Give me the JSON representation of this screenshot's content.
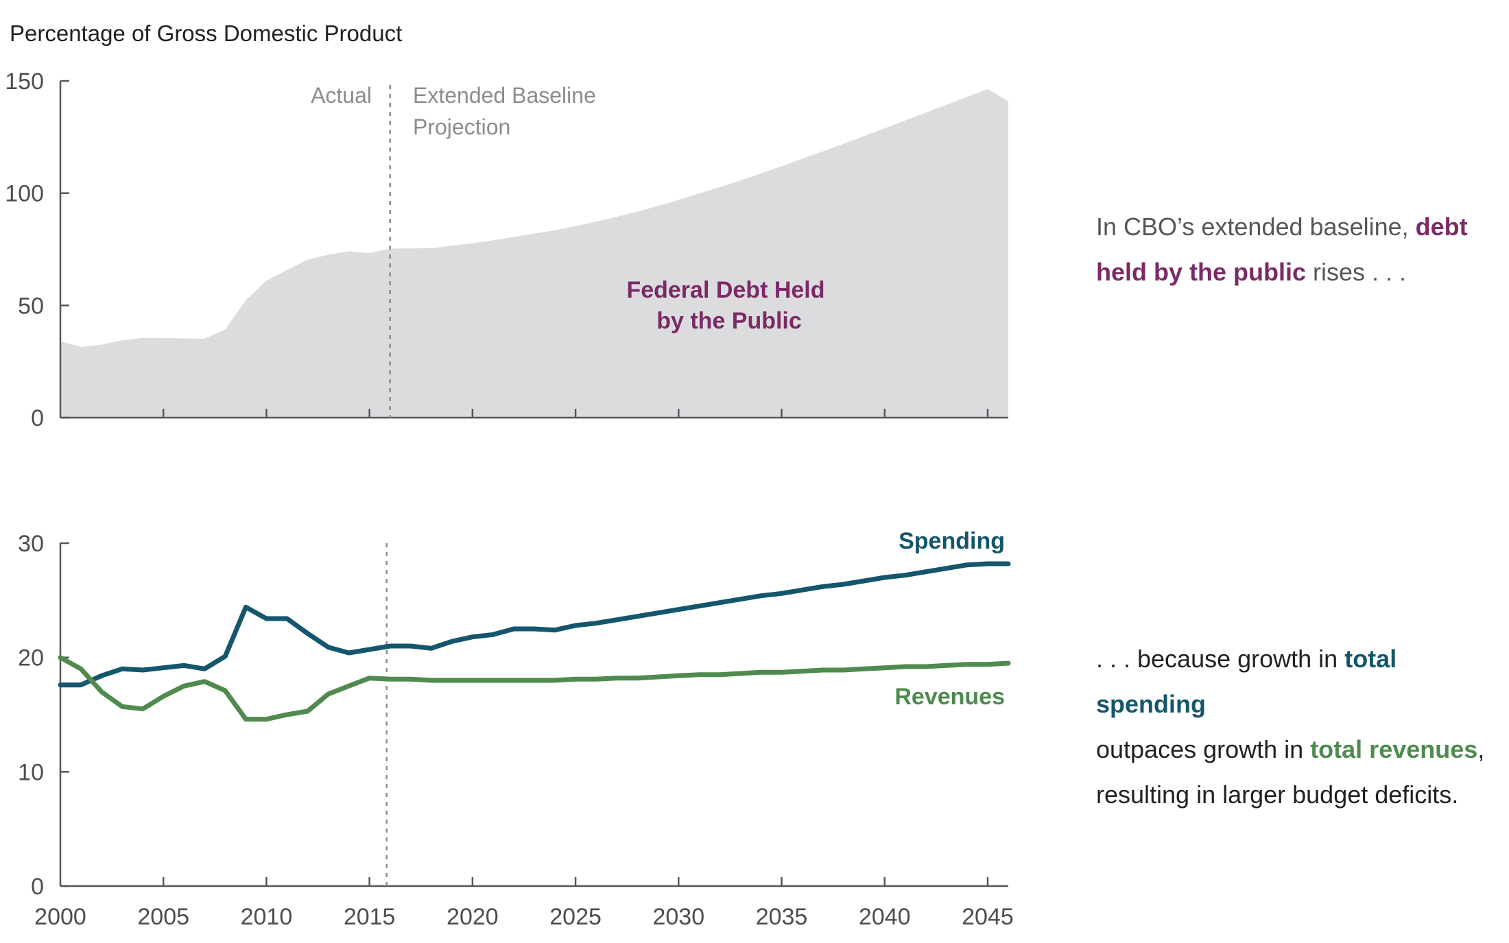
{
  "y_axis_title": "Percentage of Gross Domestic Product",
  "labels": {
    "actual": "Actual",
    "projection_line1": "Extended Baseline",
    "projection_line2": "Projection"
  },
  "colors": {
    "debt_fill": "#dcdcdf",
    "debt_label": "#7b2a66",
    "spending": "#14566b",
    "revenues": "#4f8a4f",
    "axis": "#55565a",
    "divider": "#8c8c8e"
  },
  "annotations": {
    "top": {
      "t1": "In CBO’s extended baseline, ",
      "b1": "debt",
      "b2": "held by the public",
      "t2": " rises . . ."
    },
    "bottom": {
      "t1": ". . . because growth in ",
      "b1": "total spending",
      "t2": "outpaces growth in ",
      "b2": "total revenues",
      "t3": ",",
      "t4": "resulting in larger budget deficits."
    }
  },
  "chart_data": [
    {
      "type": "area",
      "ylim": [
        0,
        150
      ],
      "yticks": [
        "0",
        "50",
        "100",
        "150"
      ],
      "xlim": [
        2000,
        2046
      ],
      "divider_x": 2016,
      "series": [
        {
          "name_line1": "Federal Debt Held",
          "name_line2": "by the Public",
          "x": [
            2000,
            2001,
            2002,
            2003,
            2004,
            2005,
            2006,
            2007,
            2008,
            2009,
            2010,
            2011,
            2012,
            2013,
            2014,
            2015,
            2016,
            2017,
            2018,
            2019,
            2020,
            2021,
            2022,
            2023,
            2024,
            2025,
            2026,
            2027,
            2028,
            2029,
            2030,
            2031,
            2032,
            2033,
            2034,
            2035,
            2036,
            2037,
            2038,
            2039,
            2040,
            2041,
            2042,
            2043,
            2044,
            2045,
            2046
          ],
          "values": [
            34,
            31.5,
            32.5,
            34.5,
            35.5,
            35.5,
            35.3,
            35.2,
            39.3,
            52.3,
            61,
            65.8,
            70.4,
            72.6,
            74.1,
            73.3,
            75.3,
            75.4,
            75.5,
            76.6,
            77.7,
            79,
            80.5,
            82,
            83.5,
            85.3,
            87.3,
            89.5,
            91.8,
            94.3,
            97,
            99.8,
            102.7,
            105.7,
            108.8,
            112,
            115.3,
            118.6,
            122,
            125.4,
            128.9,
            132.4,
            135.9,
            139.4,
            142.9,
            146.4,
            141
          ]
        }
      ]
    },
    {
      "type": "line",
      "ylim": [
        0,
        30
      ],
      "yticks": [
        "0",
        "10",
        "20",
        "30"
      ],
      "xlim": [
        2000,
        2046
      ],
      "xticks": [
        "2000",
        "2005",
        "2010",
        "2015",
        "2020",
        "2025",
        "2030",
        "2035",
        "2040",
        "2045"
      ],
      "divider_x": 2016,
      "series": [
        {
          "name": "Spending",
          "x": [
            2000,
            2001,
            2002,
            2003,
            2004,
            2005,
            2006,
            2007,
            2008,
            2009,
            2010,
            2011,
            2012,
            2013,
            2014,
            2015,
            2016,
            2017,
            2018,
            2019,
            2020,
            2021,
            2022,
            2023,
            2024,
            2025,
            2026,
            2027,
            2028,
            2029,
            2030,
            2031,
            2032,
            2033,
            2034,
            2035,
            2036,
            2037,
            2038,
            2039,
            2040,
            2041,
            2042,
            2043,
            2044,
            2045,
            2046
          ],
          "values": [
            17.6,
            17.6,
            18.4,
            19,
            18.9,
            19.1,
            19.3,
            19,
            20.1,
            24.4,
            23.4,
            23.4,
            22.1,
            20.9,
            20.4,
            20.7,
            21,
            21,
            20.8,
            21.4,
            21.8,
            22,
            22.5,
            22.5,
            22.4,
            22.8,
            23,
            23.3,
            23.6,
            23.9,
            24.2,
            24.5,
            24.8,
            25.1,
            25.4,
            25.6,
            25.9,
            26.2,
            26.4,
            26.7,
            27,
            27.2,
            27.5,
            27.8,
            28.1,
            28.2,
            28.2
          ]
        },
        {
          "name": "Revenues",
          "x": [
            2000,
            2001,
            2002,
            2003,
            2004,
            2005,
            2006,
            2007,
            2008,
            2009,
            2010,
            2011,
            2012,
            2013,
            2014,
            2015,
            2016,
            2017,
            2018,
            2019,
            2020,
            2021,
            2022,
            2023,
            2024,
            2025,
            2026,
            2027,
            2028,
            2029,
            2030,
            2031,
            2032,
            2033,
            2034,
            2035,
            2036,
            2037,
            2038,
            2039,
            2040,
            2041,
            2042,
            2043,
            2044,
            2045,
            2046
          ],
          "values": [
            20,
            19,
            17,
            15.7,
            15.5,
            16.6,
            17.5,
            17.9,
            17.1,
            14.6,
            14.6,
            15,
            15.3,
            16.8,
            17.5,
            18.2,
            18.1,
            18.1,
            18,
            18,
            18,
            18,
            18,
            18,
            18,
            18.1,
            18.1,
            18.2,
            18.2,
            18.3,
            18.4,
            18.5,
            18.5,
            18.6,
            18.7,
            18.7,
            18.8,
            18.9,
            18.9,
            19,
            19.1,
            19.2,
            19.2,
            19.3,
            19.4,
            19.4,
            19.5
          ]
        }
      ]
    }
  ]
}
